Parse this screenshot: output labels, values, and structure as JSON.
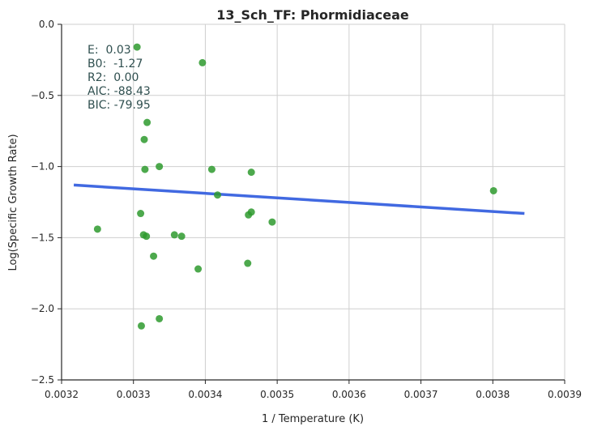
{
  "chart_data": {
    "type": "scatter",
    "title": "13_Sch_TF: Phormidiaceae",
    "xlabel": "1 / Temperature (K)",
    "ylabel": "Log(Specific Growth Rate)",
    "xlim": [
      0.0032,
      0.0039
    ],
    "ylim": [
      -2.5,
      0.0
    ],
    "xticks": [
      0.0032,
      0.0033,
      0.0034,
      0.0035,
      0.0036,
      0.0037,
      0.0038,
      0.0039
    ],
    "xtick_labels": [
      "0.0032",
      "0.0033",
      "0.0034",
      "0.0035",
      "0.0036",
      "0.0037",
      "0.0038",
      "0.0039"
    ],
    "yticks": [
      0.0,
      -0.5,
      -1.0,
      -1.5,
      -2.0,
      -2.5
    ],
    "ytick_labels": [
      "0.0",
      "−0.5",
      "−1.0",
      "−1.5",
      "−2.0",
      "−2.5"
    ],
    "grid": true,
    "point_color": "#2e9a2e",
    "line_color": "#4169e1",
    "points": [
      {
        "x": 0.003305,
        "y": -0.16
      },
      {
        "x": 0.003396,
        "y": -0.27
      },
      {
        "x": 0.003319,
        "y": -0.69
      },
      {
        "x": 0.003315,
        "y": -0.81
      },
      {
        "x": 0.003316,
        "y": -1.02
      },
      {
        "x": 0.003336,
        "y": -1.0
      },
      {
        "x": 0.003409,
        "y": -1.02
      },
      {
        "x": 0.003464,
        "y": -1.04
      },
      {
        "x": 0.003417,
        "y": -1.2
      },
      {
        "x": 0.003801,
        "y": -1.17
      },
      {
        "x": 0.00331,
        "y": -1.33
      },
      {
        "x": 0.003464,
        "y": -1.32
      },
      {
        "x": 0.00346,
        "y": -1.34
      },
      {
        "x": 0.003493,
        "y": -1.39
      },
      {
        "x": 0.00325,
        "y": -1.44
      },
      {
        "x": 0.003314,
        "y": -1.48
      },
      {
        "x": 0.003318,
        "y": -1.49
      },
      {
        "x": 0.003357,
        "y": -1.48
      },
      {
        "x": 0.003367,
        "y": -1.49
      },
      {
        "x": 0.003328,
        "y": -1.63
      },
      {
        "x": 0.003459,
        "y": -1.68
      },
      {
        "x": 0.00339,
        "y": -1.72
      },
      {
        "x": 0.003336,
        "y": -2.07
      },
      {
        "x": 0.003311,
        "y": -2.12
      }
    ],
    "fit_line": {
      "x": [
        0.003217,
        0.003844
      ],
      "y": [
        -1.13,
        -1.33
      ]
    },
    "stats": [
      "E:  0.03",
      "B0:  -1.27",
      "R2:  0.00",
      "AIC: -88.43",
      "BIC: -79.95"
    ]
  }
}
